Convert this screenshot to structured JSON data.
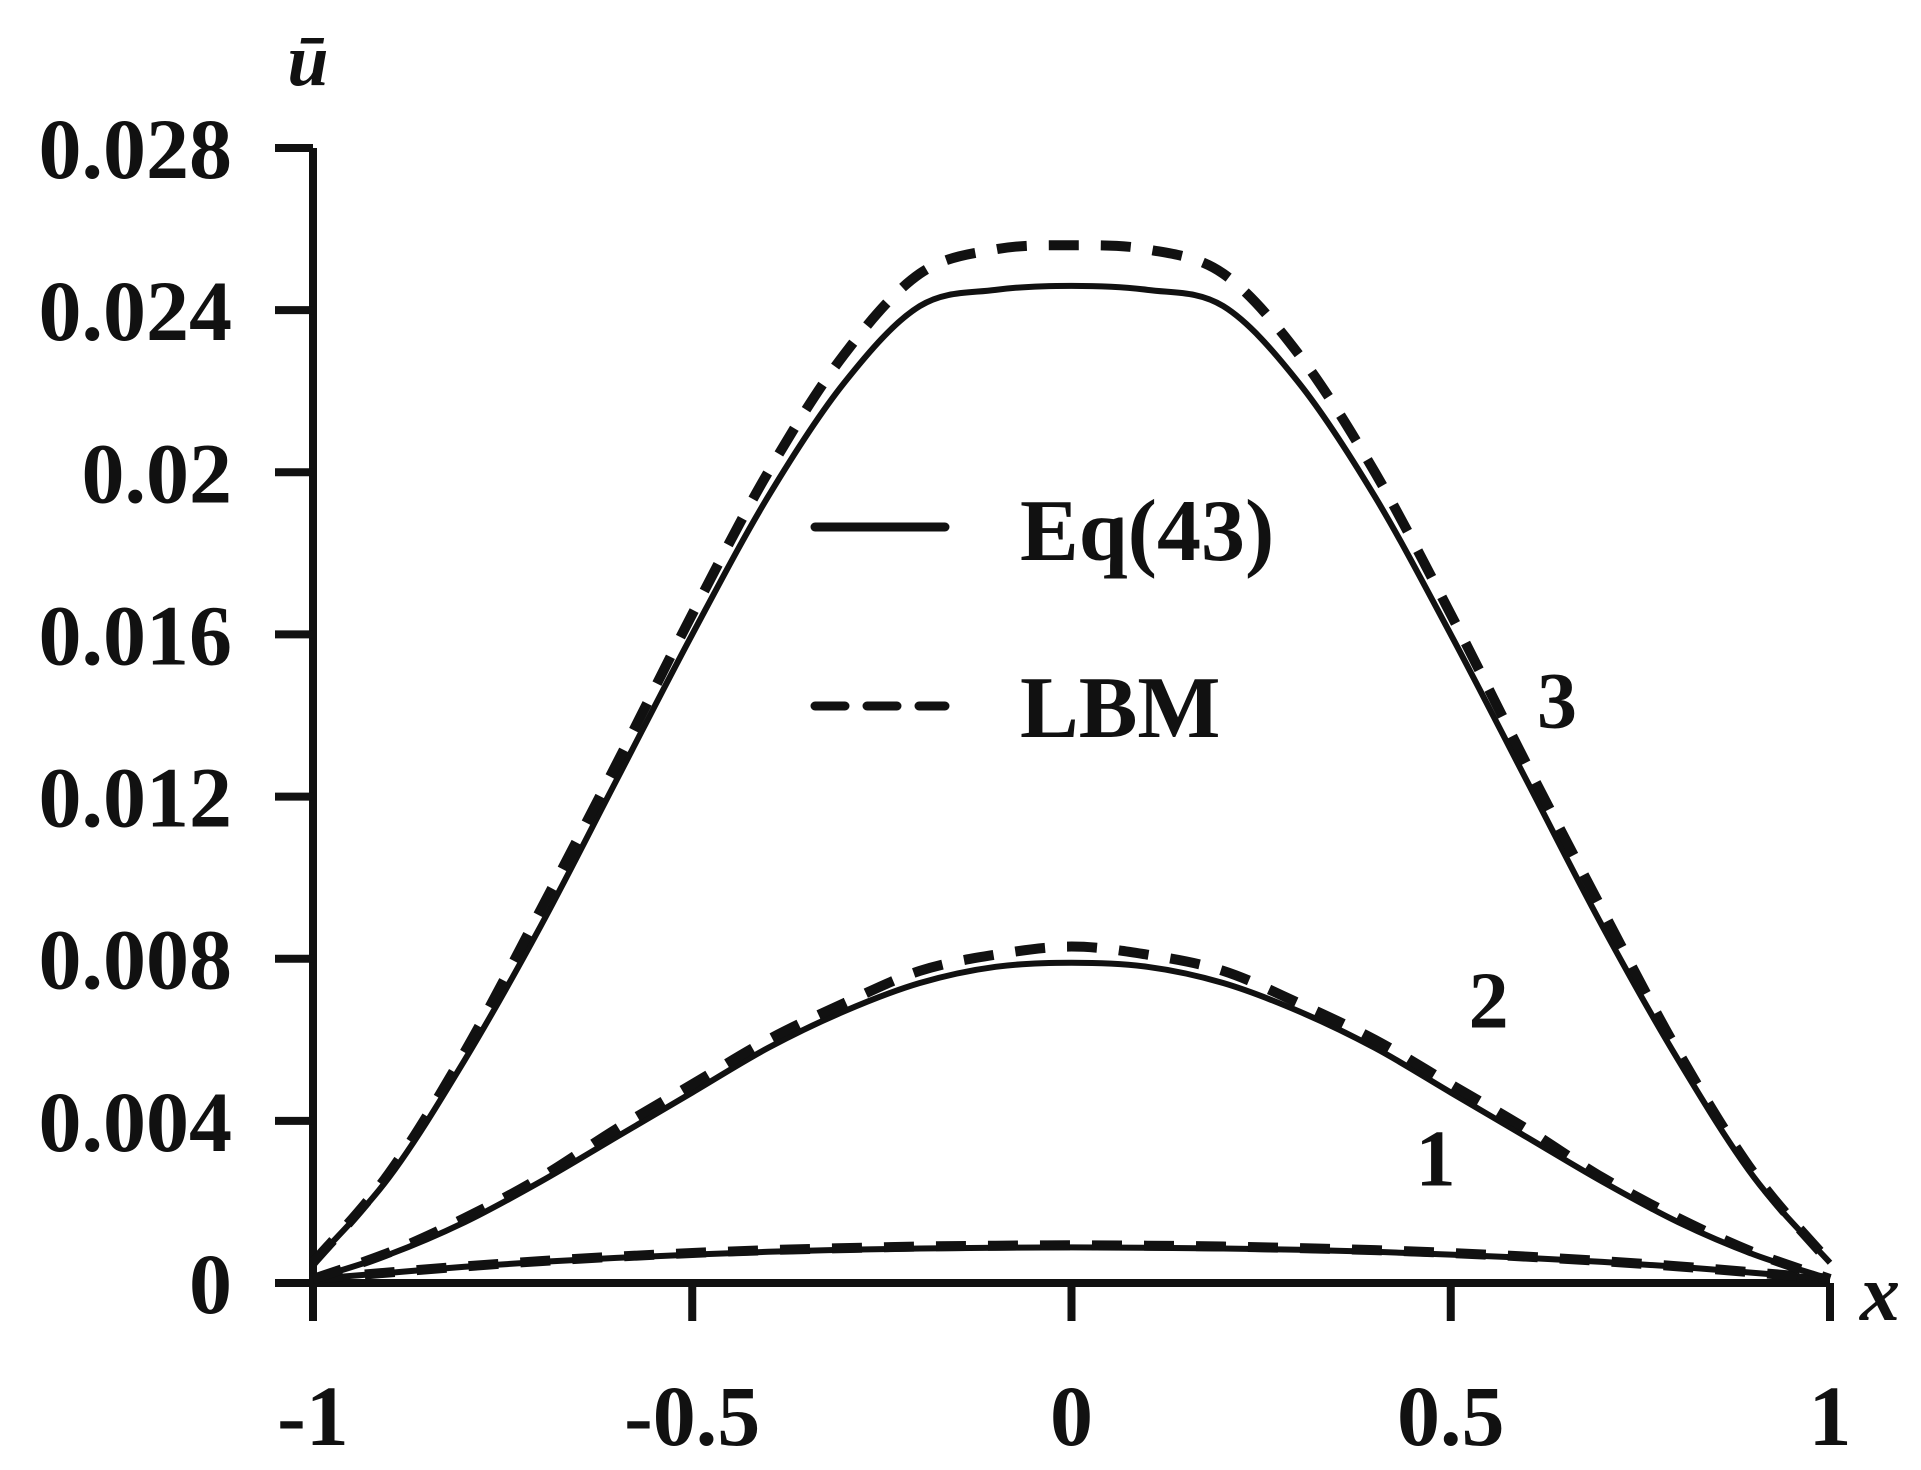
{
  "chart_data": {
    "type": "line",
    "title": "",
    "xlabel": "x",
    "ylabel": "ū",
    "xlim": [
      -1,
      1
    ],
    "ylim": [
      0,
      0.028
    ],
    "x_ticks": [
      -1,
      -0.5,
      0,
      0.5,
      1
    ],
    "x_tick_labels": [
      "-1",
      "-0.5",
      "0",
      "0.5",
      "1"
    ],
    "y_ticks": [
      0,
      0.004,
      0.008,
      0.012,
      0.016,
      0.02,
      0.024,
      0.028
    ],
    "y_tick_labels": [
      "0",
      "0.004",
      "0.008",
      "0.012",
      "0.016",
      "0.02",
      "0.024",
      "0.028"
    ],
    "grid": false,
    "legend_position": "center",
    "legend": [
      {
        "label": "Eq(43)",
        "style": "solid"
      },
      {
        "label": "LBM",
        "style": "dashed"
      }
    ],
    "x": [
      -1,
      -0.9,
      -0.8,
      -0.7,
      -0.6,
      -0.5,
      -0.4,
      -0.3,
      -0.2,
      -0.1,
      0,
      0.1,
      0.2,
      0.3,
      0.4,
      0.5,
      0.6,
      0.7,
      0.8,
      0.9,
      1
    ],
    "series": [
      {
        "curve": "1",
        "method": "Eq(43)",
        "style": "solid",
        "values": [
          0.0001,
          0.00025,
          0.0004,
          0.00052,
          0.00062,
          0.0007,
          0.00077,
          0.00082,
          0.00085,
          0.00087,
          0.00088,
          0.00087,
          0.00085,
          0.00082,
          0.00077,
          0.0007,
          0.00062,
          0.00052,
          0.0004,
          0.00025,
          0.0001
        ]
      },
      {
        "curve": "1",
        "method": "LBM",
        "style": "dashed",
        "values": [
          0.0001,
          0.00026,
          0.00041,
          0.00054,
          0.00065,
          0.00074,
          0.00081,
          0.00086,
          0.0009,
          0.00092,
          0.00093,
          0.00092,
          0.0009,
          0.00086,
          0.00081,
          0.00074,
          0.00065,
          0.00054,
          0.00041,
          0.00026,
          0.0001
        ]
      },
      {
        "curve": "2",
        "method": "Eq(43)",
        "style": "solid",
        "values": [
          0.0001,
          0.0007,
          0.0015,
          0.0025,
          0.0036,
          0.0047,
          0.0058,
          0.0067,
          0.0074,
          0.0078,
          0.0079,
          0.0078,
          0.0074,
          0.0067,
          0.0058,
          0.0047,
          0.0036,
          0.0025,
          0.0015,
          0.0007,
          0.0001
        ]
      },
      {
        "curve": "2",
        "method": "LBM",
        "style": "dashed",
        "values": [
          0.0001,
          0.00075,
          0.0016,
          0.0026,
          0.0038,
          0.0049,
          0.006,
          0.0069,
          0.0077,
          0.0081,
          0.0083,
          0.0081,
          0.0077,
          0.0069,
          0.006,
          0.0049,
          0.0038,
          0.0026,
          0.0016,
          0.00075,
          0.0001
        ]
      },
      {
        "curve": "3",
        "method": "Eq(43)",
        "style": "solid",
        "values": [
          0.0005,
          0.0026,
          0.0055,
          0.0088,
          0.0124,
          0.016,
          0.0194,
          0.0222,
          0.0241,
          0.0245,
          0.0246,
          0.0245,
          0.0241,
          0.0222,
          0.0194,
          0.016,
          0.0124,
          0.0088,
          0.0055,
          0.0026,
          0.0005
        ]
      },
      {
        "curve": "3",
        "method": "LBM",
        "style": "dashed",
        "values": [
          0.0005,
          0.0027,
          0.0057,
          0.0092,
          0.0128,
          0.0165,
          0.02,
          0.0229,
          0.0249,
          0.0255,
          0.0256,
          0.0255,
          0.0249,
          0.0229,
          0.02,
          0.0165,
          0.0128,
          0.0092,
          0.0057,
          0.0027,
          0.0005
        ]
      }
    ],
    "curve_labels": [
      "1",
      "2",
      "3"
    ],
    "curve_label_at": [
      {
        "text": "1",
        "x": 0.48,
        "y": 0.0024
      },
      {
        "text": "2",
        "x": 0.55,
        "y": 0.0063
      },
      {
        "text": "3",
        "x": 0.64,
        "y": 0.0137
      }
    ]
  }
}
